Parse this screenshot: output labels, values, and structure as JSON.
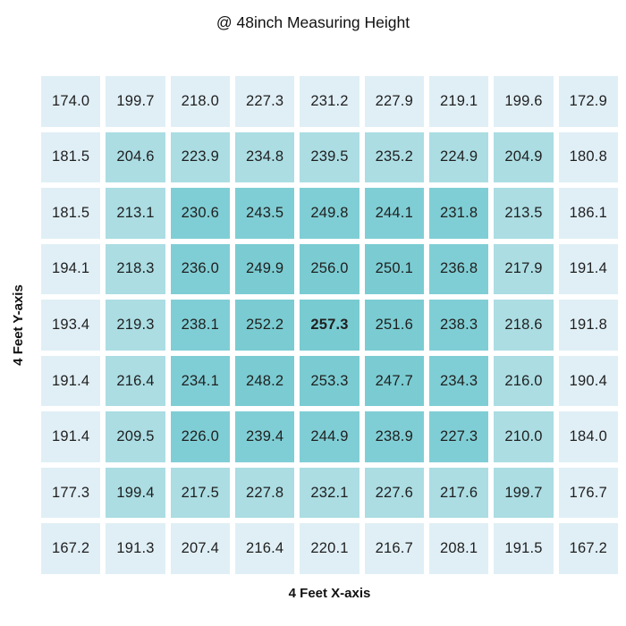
{
  "page": {
    "background": "#ffffff"
  },
  "chart_data": {
    "type": "heatmap",
    "title": "@ 48inch Measuring Height",
    "xlabel": "4 Feet X-axis",
    "ylabel": "4 Feet Y-axis",
    "grid": {
      "rows": 9,
      "cols": 9
    },
    "values": [
      [
        174.0,
        199.7,
        218.0,
        227.3,
        231.2,
        227.9,
        219.1,
        199.6,
        172.9
      ],
      [
        181.5,
        204.6,
        223.9,
        234.8,
        239.5,
        235.2,
        224.9,
        204.9,
        180.8
      ],
      [
        181.5,
        213.1,
        230.6,
        243.5,
        249.8,
        244.1,
        231.8,
        213.5,
        186.1
      ],
      [
        194.1,
        218.3,
        236.0,
        249.9,
        256.0,
        250.1,
        236.8,
        217.9,
        191.4
      ],
      [
        193.4,
        219.3,
        238.1,
        252.2,
        257.3,
        251.6,
        238.3,
        218.6,
        191.8
      ],
      [
        191.4,
        216.4,
        234.1,
        248.2,
        253.3,
        247.7,
        234.3,
        216.0,
        190.4
      ],
      [
        191.4,
        209.5,
        226.0,
        239.4,
        244.9,
        238.9,
        227.3,
        210.0,
        184.0
      ],
      [
        177.3,
        199.4,
        217.5,
        227.8,
        232.1,
        227.6,
        217.6,
        199.7,
        176.7
      ],
      [
        167.2,
        191.3,
        207.4,
        216.4,
        220.1,
        216.7,
        208.1,
        191.5,
        167.2
      ]
    ],
    "value_decimals": 1,
    "max_value": 257.3,
    "value_range": [
      167.2,
      257.3
    ],
    "color_mode": "concentric-rings-from-center",
    "ring_colors_center_to_edge": [
      "#78cbd1",
      "#7accd2",
      "#80ced5",
      "#abdde3",
      "#e0eff6"
    ],
    "max_value_style": "bold",
    "text_color": "#1f1f1f",
    "cell_gap_color": "#ffffff"
  }
}
